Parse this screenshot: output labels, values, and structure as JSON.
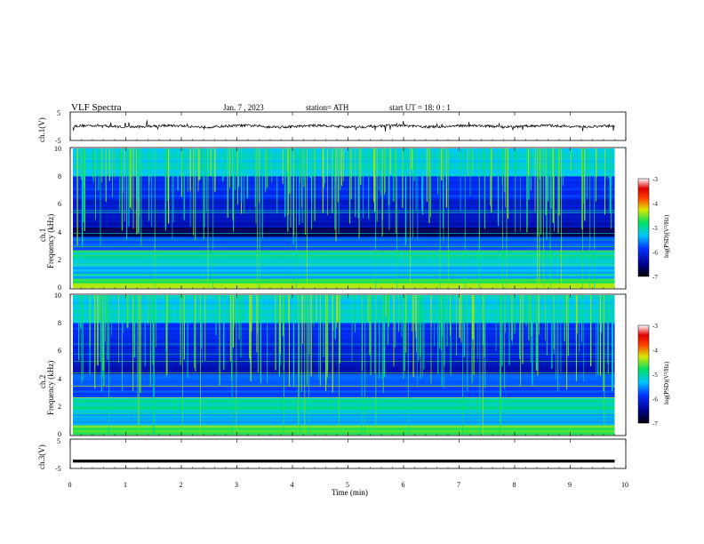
{
  "header": {
    "title": "VLF  Spectra",
    "date": "Jan.  7  , 2023",
    "station": "station= ATH",
    "start": "start  UT  =    18: 0   : 1"
  },
  "chart_data": [
    {
      "type": "line",
      "name": "ch1-waveform",
      "ylabel": "ch.1(V)",
      "ylim": [
        -5,
        5
      ],
      "yticks": [
        "5",
        "-5"
      ],
      "xlim": [
        0,
        9.8
      ],
      "baseline": 0.0
    },
    {
      "type": "heatmap",
      "name": "ch1-spectrogram",
      "ylabel": "ch.1\nFrequency  (kHz)",
      "ylim": [
        0,
        10
      ],
      "yticks": [
        "0",
        "2",
        "4",
        "6",
        "8",
        "10"
      ],
      "xlim": [
        0,
        9.8
      ],
      "colorbar": {
        "label": "log(PSD)(V²/Hz)",
        "range": [
          -7,
          -3
        ],
        "ticks": [
          "-3",
          "-4",
          "-5",
          "-6",
          "-7"
        ]
      }
    },
    {
      "type": "heatmap",
      "name": "ch2-spectrogram",
      "ylabel": "ch.2\nFrequency  (kHz)",
      "ylim": [
        0,
        10
      ],
      "yticks": [
        "0",
        "2",
        "4",
        "6",
        "8",
        "10"
      ],
      "xlim": [
        0,
        9.8
      ],
      "colorbar": {
        "label": "log(PSD)(V²/Hz)",
        "range": [
          -7,
          -3
        ],
        "ticks": [
          "-3",
          "-4",
          "-5",
          "-6",
          "-7"
        ]
      }
    },
    {
      "type": "line",
      "name": "ch3-waveform",
      "ylabel": "ch.3(V)",
      "ylim": [
        -5,
        5
      ],
      "yticks": [
        "5",
        "-5"
      ],
      "xlim": [
        0,
        9.8
      ],
      "baseline": -2.5
    }
  ],
  "xaxis": {
    "label": "Time  (min)",
    "range": [
      0,
      10
    ],
    "ticks": [
      "0",
      "1",
      "2",
      "3",
      "4",
      "5",
      "6",
      "7",
      "8",
      "9",
      "10"
    ]
  }
}
